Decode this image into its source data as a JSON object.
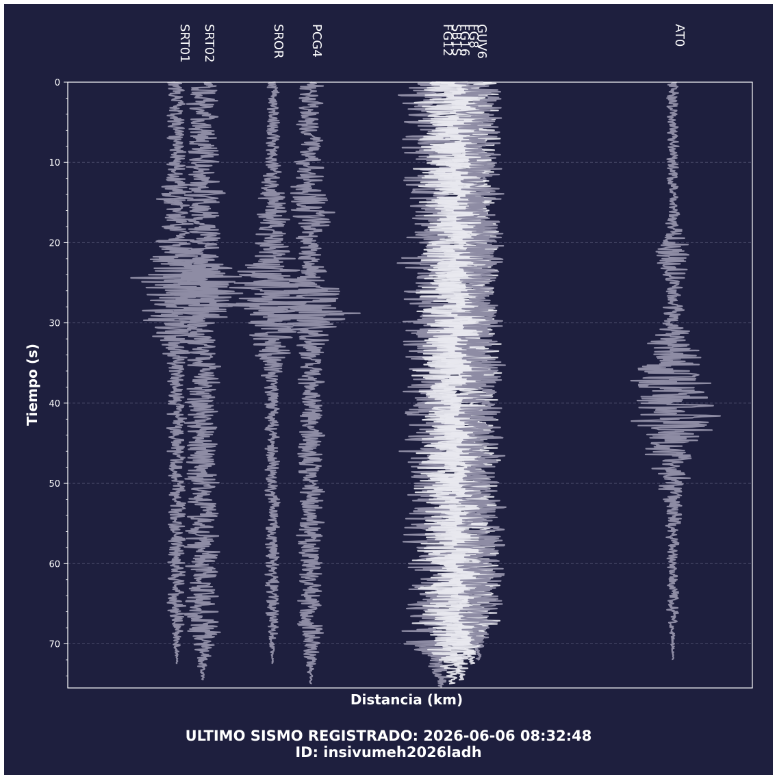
{
  "chart_data": {
    "type": "line",
    "xlabel": "Distancia (km)",
    "ylabel": "Tiempo (s)",
    "ylim": [
      0,
      75.5
    ],
    "y_inverted": true,
    "yticks": [
      0,
      10,
      20,
      30,
      40,
      50,
      60,
      70
    ],
    "grid": "horizontal dashed",
    "xticks": "none",
    "colors": {
      "background": "#1e1f3e",
      "trace": "#8e8ca4",
      "trace_bright": "#e8e8ef",
      "grid": "#4a4b6a",
      "text": "#ffffff"
    },
    "series": [
      {
        "name": "SRT01",
        "duration": 72.5,
        "amp": 1.2,
        "bursts": [
          [
            25.5,
            6,
            5.5
          ],
          [
            14,
            2,
            1.5
          ]
        ]
      },
      {
        "name": "SRT02",
        "duration": 74.5,
        "amp": 2.3,
        "bursts": [
          [
            26,
            3,
            4
          ],
          [
            14,
            1,
            1.5
          ]
        ]
      },
      {
        "name": "SROR",
        "duration": 72.5,
        "amp": 1.0,
        "bursts": [
          [
            16,
            3.5,
            1.2
          ],
          [
            27,
            6,
            5
          ]
        ]
      },
      {
        "name": "PCG4",
        "duration": 75,
        "amp": 1.8,
        "bursts": [
          [
            16,
            4.5,
            1.2
          ],
          [
            28,
            2.8,
            5
          ]
        ]
      },
      {
        "name": "FG12",
        "duration": 75.5,
        "amp": 5.5,
        "bursts": []
      },
      {
        "name": "SB1S",
        "duration": 75,
        "amp": 5.0,
        "bursts": []
      },
      {
        "name": "FG16",
        "duration": 74.5,
        "amp": 4.5,
        "bursts": []
      },
      {
        "name": "FG8",
        "duration": 72.5,
        "amp": 4.0,
        "bursts": []
      },
      {
        "name": "GUV6",
        "duration": 72,
        "amp": 3.5,
        "bursts": []
      },
      {
        "name": "AT0",
        "duration": 72,
        "amp": 0.8,
        "bursts": [
          [
            21.5,
            3,
            1.5
          ],
          [
            40,
            8,
            6
          ]
        ]
      }
    ]
  },
  "caption": {
    "line1": "ULTIMO SISMO REGISTRADO: 2026-06-06 08:32:48",
    "line2": "ID: insivumeh2026ladh"
  }
}
